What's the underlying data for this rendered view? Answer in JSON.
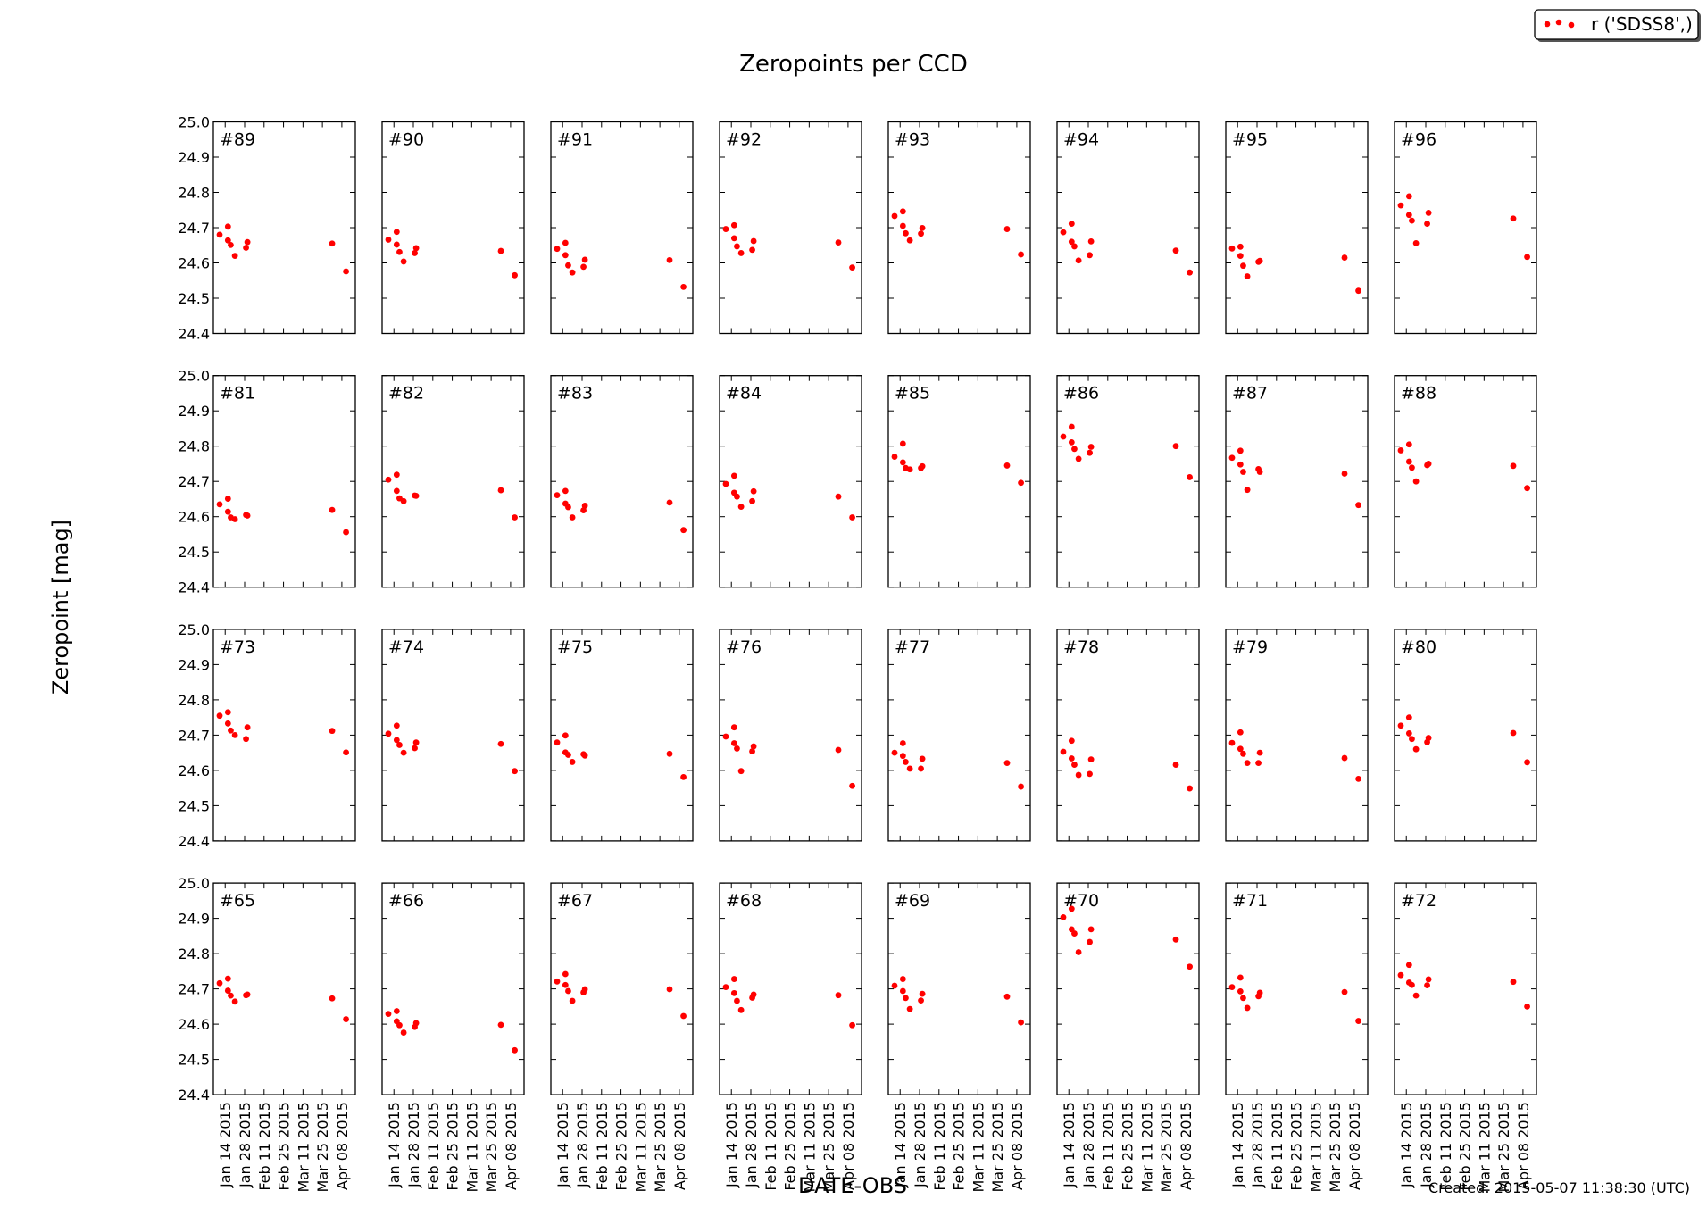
{
  "chart_data": {
    "type": "scatter",
    "title": "Zeropoints per CCD",
    "xlabel": "DATE-OBS",
    "ylabel": "Zeropoint [mag]",
    "ylim": [
      24.4,
      25.0
    ],
    "yticks": [
      "24.4",
      "24.5",
      "24.6",
      "24.7",
      "24.8",
      "24.9",
      "25.0"
    ],
    "xlim": [
      "2015-01-05",
      "2015-04-17"
    ],
    "xticks": [
      {
        "date": "2015-01-14",
        "label": "Jan 14 2015"
      },
      {
        "date": "2015-01-28",
        "label": "Jan 28 2015"
      },
      {
        "date": "2015-02-11",
        "label": "Feb 11 2015"
      },
      {
        "date": "2015-02-25",
        "label": "Feb 25 2015"
      },
      {
        "date": "2015-03-11",
        "label": "Mar 11 2015"
      },
      {
        "date": "2015-03-25",
        "label": "Mar 25 2015"
      },
      {
        "date": "2015-04-08",
        "label": "Apr 08 2015"
      }
    ],
    "grid": false,
    "legend": {
      "label": "r ('SDSS8',)",
      "placement": "top-right",
      "color": "#ff0000"
    },
    "x": [
      "2015-01-10",
      "2015-01-16",
      "2015-01-16",
      "2015-01-18",
      "2015-01-21",
      "2015-01-29",
      "2015-01-30",
      "2015-04-01",
      "2015-04-11"
    ],
    "panels": [
      {
        "label": "#89",
        "values": [
          24.68,
          24.703,
          24.664,
          24.651,
          24.62,
          24.643,
          24.659,
          24.655,
          24.576
        ]
      },
      {
        "label": "#90",
        "values": [
          24.666,
          24.688,
          24.652,
          24.631,
          24.604,
          24.628,
          24.642,
          24.634,
          24.565
        ]
      },
      {
        "label": "#91",
        "values": [
          24.64,
          24.657,
          24.622,
          24.593,
          24.573,
          24.589,
          24.609,
          24.608,
          24.532
        ]
      },
      {
        "label": "#92",
        "values": [
          24.696,
          24.707,
          24.67,
          24.647,
          24.628,
          24.637,
          24.662,
          24.658,
          24.587
        ]
      },
      {
        "label": "#93",
        "values": [
          24.733,
          24.746,
          24.705,
          24.684,
          24.664,
          24.683,
          24.699,
          24.696,
          24.624
        ]
      },
      {
        "label": "#94",
        "values": [
          24.687,
          24.711,
          24.66,
          24.647,
          24.607,
          24.622,
          24.661,
          24.635,
          24.573
        ]
      },
      {
        "label": "#95",
        "values": [
          24.641,
          24.646,
          24.62,
          24.592,
          24.562,
          24.603,
          24.606,
          24.615,
          24.521
        ]
      },
      {
        "label": "#96",
        "values": [
          24.763,
          24.789,
          24.736,
          24.72,
          24.656,
          24.711,
          24.742,
          24.726,
          24.617
        ]
      },
      {
        "label": "#81",
        "values": [
          24.635,
          24.651,
          24.614,
          24.598,
          24.593,
          24.605,
          24.603,
          24.619,
          24.556
        ]
      },
      {
        "label": "#82",
        "values": [
          24.705,
          24.719,
          24.673,
          24.652,
          24.644,
          24.66,
          24.659,
          24.675,
          24.598
        ]
      },
      {
        "label": "#83",
        "values": [
          24.661,
          24.673,
          24.637,
          24.627,
          24.598,
          24.618,
          24.631,
          24.64,
          24.562
        ]
      },
      {
        "label": "#84",
        "values": [
          24.693,
          24.716,
          24.668,
          24.657,
          24.628,
          24.644,
          24.672,
          24.657,
          24.598
        ]
      },
      {
        "label": "#85",
        "values": [
          24.77,
          24.807,
          24.754,
          24.738,
          24.734,
          24.738,
          24.743,
          24.745,
          24.696
        ]
      },
      {
        "label": "#86",
        "values": [
          24.827,
          24.855,
          24.811,
          24.792,
          24.764,
          24.781,
          24.798,
          24.8,
          24.712
        ]
      },
      {
        "label": "#87",
        "values": [
          24.767,
          24.787,
          24.748,
          24.727,
          24.676,
          24.735,
          24.727,
          24.722,
          24.633
        ]
      },
      {
        "label": "#88",
        "values": [
          24.788,
          24.805,
          24.756,
          24.739,
          24.7,
          24.746,
          24.75,
          24.744,
          24.681
        ]
      },
      {
        "label": "#73",
        "values": [
          24.755,
          24.765,
          24.733,
          24.713,
          24.7,
          24.689,
          24.722,
          24.712,
          24.651
        ]
      },
      {
        "label": "#74",
        "values": [
          24.704,
          24.727,
          24.686,
          24.672,
          24.65,
          24.663,
          24.679,
          24.675,
          24.598
        ]
      },
      {
        "label": "#75",
        "values": [
          24.679,
          24.699,
          24.651,
          24.644,
          24.624,
          24.646,
          24.642,
          24.647,
          24.581
        ]
      },
      {
        "label": "#76",
        "values": [
          24.696,
          24.722,
          24.677,
          24.662,
          24.598,
          24.654,
          24.668,
          24.658,
          24.556
        ]
      },
      {
        "label": "#77",
        "values": [
          24.65,
          24.677,
          24.641,
          24.624,
          24.605,
          24.605,
          24.633,
          24.621,
          24.554
        ]
      },
      {
        "label": "#78",
        "values": [
          24.653,
          24.684,
          24.634,
          24.616,
          24.587,
          24.59,
          24.631,
          24.616,
          24.549
        ]
      },
      {
        "label": "#79",
        "values": [
          24.678,
          24.708,
          24.661,
          24.647,
          24.621,
          24.621,
          24.65,
          24.635,
          24.576
        ]
      },
      {
        "label": "#80",
        "values": [
          24.727,
          24.75,
          24.705,
          24.689,
          24.66,
          24.68,
          24.692,
          24.706,
          24.623
        ]
      },
      {
        "label": "#65",
        "values": [
          24.716,
          24.729,
          24.695,
          24.681,
          24.664,
          24.682,
          24.684,
          24.673,
          24.614
        ]
      },
      {
        "label": "#66",
        "values": [
          24.629,
          24.637,
          24.608,
          24.597,
          24.576,
          24.592,
          24.603,
          24.598,
          24.526
        ]
      },
      {
        "label": "#67",
        "values": [
          24.721,
          24.742,
          24.711,
          24.694,
          24.666,
          24.69,
          24.699,
          24.699,
          24.623
        ]
      },
      {
        "label": "#68",
        "values": [
          24.705,
          24.728,
          24.688,
          24.666,
          24.64,
          24.675,
          24.684,
          24.682,
          24.597
        ]
      },
      {
        "label": "#69",
        "values": [
          24.709,
          24.728,
          24.694,
          24.674,
          24.643,
          24.667,
          24.686,
          24.678,
          24.605
        ]
      },
      {
        "label": "#70",
        "values": [
          24.903,
          24.927,
          24.869,
          24.857,
          24.804,
          24.833,
          24.869,
          24.84,
          24.763
        ]
      },
      {
        "label": "#71",
        "values": [
          24.705,
          24.732,
          24.693,
          24.674,
          24.646,
          24.679,
          24.689,
          24.691,
          24.609
        ]
      },
      {
        "label": "#72",
        "values": [
          24.739,
          24.768,
          24.718,
          24.711,
          24.681,
          24.71,
          24.727,
          24.72,
          24.65
        ]
      }
    ]
  },
  "footer": {
    "created": "Created: 2015-05-07 11:38:30 (UTC)"
  }
}
